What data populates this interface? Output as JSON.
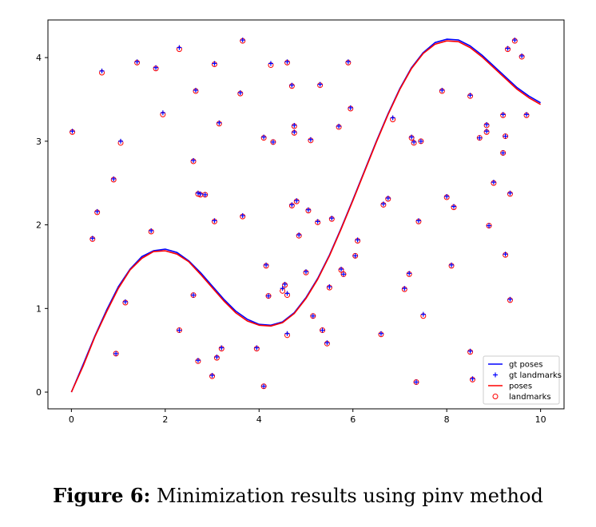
{
  "chart_data": {
    "type": "line",
    "xlim": [
      -0.5,
      10.5
    ],
    "ylim": [
      -0.2,
      4.45
    ],
    "x_ticks": [
      "0",
      "2",
      "4",
      "6",
      "8",
      "10"
    ],
    "x_tick_values": [
      0,
      2,
      4,
      6,
      8,
      10
    ],
    "y_ticks": [
      "0",
      "1",
      "2",
      "3",
      "4"
    ],
    "y_tick_values": [
      0,
      1,
      2,
      3,
      4
    ],
    "grid": false,
    "legend_position": "lower-right",
    "series": [
      {
        "name": "gt poses",
        "kind": "line",
        "color": "#0000ff",
        "x": [
          0,
          0.25,
          0.5,
          0.75,
          1,
          1.25,
          1.5,
          1.75,
          2,
          2.25,
          2.5,
          2.75,
          3,
          3.25,
          3.5,
          3.75,
          4,
          4.25,
          4.5,
          4.75,
          5,
          5.25,
          5.5,
          5.75,
          6,
          6.25,
          6.5,
          6.75,
          7,
          7.25,
          7.5,
          7.75,
          8,
          8.25,
          8.5,
          8.75,
          9,
          9.25,
          9.5,
          9.75,
          10
        ],
        "y": [
          0,
          0.33,
          0.67,
          0.98,
          1.26,
          1.47,
          1.62,
          1.69,
          1.71,
          1.67,
          1.57,
          1.43,
          1.27,
          1.11,
          0.97,
          0.87,
          0.81,
          0.8,
          0.84,
          0.95,
          1.13,
          1.36,
          1.64,
          1.96,
          2.3,
          2.65,
          3.0,
          3.33,
          3.63,
          3.88,
          4.06,
          4.18,
          4.22,
          4.21,
          4.14,
          4.03,
          3.9,
          3.77,
          3.64,
          3.54,
          3.46
        ]
      },
      {
        "name": "gt landmarks",
        "kind": "plus",
        "color": "#0000ff",
        "x": [
          0.02,
          0.45,
          0.55,
          0.65,
          0.9,
          0.95,
          1.05,
          1.15,
          1.4,
          1.7,
          1.8,
          1.95,
          2.3,
          2.3,
          2.6,
          2.6,
          2.65,
          2.7,
          2.7,
          2.75,
          2.85,
          3.0,
          3.05,
          3.05,
          3.1,
          3.15,
          3.2,
          3.6,
          3.65,
          3.65,
          3.95,
          4.1,
          4.1,
          4.15,
          4.2,
          4.25,
          4.3,
          4.5,
          4.55,
          4.6,
          4.6,
          4.6,
          4.7,
          4.7,
          4.75,
          4.75,
          4.8,
          4.85,
          5.0,
          5.05,
          5.1,
          5.15,
          5.25,
          5.3,
          5.35,
          5.45,
          5.5,
          5.55,
          5.7,
          5.75,
          5.8,
          5.9,
          5.95,
          6.05,
          6.1,
          6.6,
          6.65,
          6.75,
          6.85,
          7.1,
          7.2,
          7.25,
          7.3,
          7.35,
          7.4,
          7.45,
          7.5,
          7.9,
          8.0,
          8.1,
          8.15,
          8.5,
          8.5,
          8.55,
          8.7,
          8.85,
          8.85,
          8.9,
          9.0,
          9.2,
          9.2,
          9.25,
          9.25,
          9.3,
          9.35,
          9.35,
          9.45,
          9.6,
          9.7
        ],
        "y": [
          3.12,
          1.84,
          2.16,
          3.84,
          2.55,
          0.46,
          3.0,
          1.08,
          3.95,
          1.93,
          3.88,
          3.34,
          0.74,
          4.12,
          2.77,
          1.16,
          3.61,
          2.38,
          0.38,
          2.37,
          2.36,
          0.2,
          3.93,
          2.05,
          0.42,
          3.22,
          0.53,
          3.58,
          2.11,
          4.21,
          0.53,
          0.07,
          3.05,
          1.52,
          1.15,
          3.93,
          2.99,
          1.24,
          1.29,
          1.18,
          0.7,
          3.95,
          2.24,
          3.67,
          3.11,
          3.19,
          2.29,
          1.88,
          1.44,
          2.18,
          3.02,
          0.91,
          2.04,
          3.68,
          0.74,
          0.59,
          1.26,
          2.08,
          3.18,
          1.47,
          1.41,
          3.95,
          3.4,
          1.63,
          1.82,
          0.7,
          2.25,
          2.32,
          3.28,
          1.24,
          1.42,
          3.05,
          2.99,
          0.12,
          2.05,
          3.0,
          0.93,
          3.61,
          2.34,
          1.52,
          2.22,
          0.49,
          3.55,
          0.16,
          3.04,
          3.12,
          3.2,
          1.99,
          2.51,
          2.86,
          3.32,
          3.06,
          1.65,
          4.11,
          2.38,
          1.11,
          4.21,
          4.02,
          3.32
        ]
      },
      {
        "name": "poses",
        "kind": "line",
        "color": "#ff0000",
        "x": [
          0,
          0.25,
          0.5,
          0.75,
          1,
          1.25,
          1.5,
          1.75,
          2,
          2.25,
          2.5,
          2.75,
          3,
          3.25,
          3.5,
          3.75,
          4,
          4.25,
          4.5,
          4.75,
          5,
          5.25,
          5.5,
          5.75,
          6,
          6.25,
          6.5,
          6.75,
          7,
          7.25,
          7.5,
          7.75,
          8,
          8.25,
          8.5,
          8.75,
          9,
          9.25,
          9.5,
          9.75,
          10
        ],
        "y": [
          0,
          0.31,
          0.66,
          0.96,
          1.24,
          1.46,
          1.6,
          1.68,
          1.69,
          1.65,
          1.56,
          1.41,
          1.25,
          1.09,
          0.95,
          0.85,
          0.8,
          0.79,
          0.83,
          0.94,
          1.12,
          1.35,
          1.63,
          1.95,
          2.29,
          2.64,
          2.99,
          3.32,
          3.62,
          3.87,
          4.05,
          4.16,
          4.2,
          4.19,
          4.12,
          4.01,
          3.88,
          3.75,
          3.62,
          3.52,
          3.44
        ]
      },
      {
        "name": "landmarks",
        "kind": "circle",
        "color": "#ff0000",
        "x": [
          0.02,
          0.45,
          0.55,
          0.65,
          0.9,
          0.95,
          1.05,
          1.15,
          1.4,
          1.7,
          1.8,
          1.95,
          2.3,
          2.3,
          2.6,
          2.6,
          2.65,
          2.7,
          2.7,
          2.75,
          2.85,
          3.0,
          3.05,
          3.05,
          3.1,
          3.15,
          3.2,
          3.6,
          3.65,
          3.65,
          3.95,
          4.1,
          4.1,
          4.15,
          4.2,
          4.25,
          4.3,
          4.5,
          4.55,
          4.6,
          4.6,
          4.6,
          4.7,
          4.7,
          4.75,
          4.75,
          4.8,
          4.85,
          5.0,
          5.05,
          5.1,
          5.15,
          5.25,
          5.3,
          5.35,
          5.45,
          5.5,
          5.55,
          5.7,
          5.75,
          5.8,
          5.9,
          5.95,
          6.05,
          6.1,
          6.6,
          6.65,
          6.75,
          6.85,
          7.1,
          7.2,
          7.25,
          7.3,
          7.35,
          7.4,
          7.45,
          7.5,
          7.9,
          8.0,
          8.1,
          8.15,
          8.5,
          8.5,
          8.55,
          8.7,
          8.85,
          8.85,
          8.9,
          9.0,
          9.2,
          9.2,
          9.25,
          9.25,
          9.3,
          9.35,
          9.35,
          9.45,
          9.6,
          9.7
        ],
        "y": [
          3.11,
          1.83,
          2.15,
          3.82,
          2.54,
          0.46,
          2.98,
          1.07,
          3.94,
          1.92,
          3.87,
          3.32,
          0.74,
          4.1,
          2.76,
          1.16,
          3.6,
          2.37,
          0.37,
          2.36,
          2.36,
          0.19,
          3.92,
          2.04,
          0.41,
          3.21,
          0.52,
          3.57,
          2.1,
          4.2,
          0.52,
          0.07,
          3.04,
          1.51,
          1.15,
          3.91,
          2.99,
          1.21,
          1.28,
          1.16,
          0.68,
          3.94,
          2.23,
          3.66,
          3.1,
          3.18,
          2.28,
          1.87,
          1.43,
          2.17,
          3.01,
          0.91,
          2.03,
          3.67,
          0.74,
          0.58,
          1.25,
          2.07,
          3.17,
          1.46,
          1.41,
          3.94,
          3.39,
          1.63,
          1.81,
          0.69,
          2.24,
          2.31,
          3.26,
          1.23,
          1.41,
          3.04,
          2.98,
          0.12,
          2.04,
          3.0,
          0.91,
          3.6,
          2.33,
          1.51,
          2.21,
          0.48,
          3.54,
          0.15,
          3.04,
          3.11,
          3.19,
          1.99,
          2.5,
          2.86,
          3.31,
          3.06,
          1.64,
          4.1,
          2.37,
          1.1,
          4.2,
          4.01,
          3.31
        ]
      }
    ]
  },
  "caption": {
    "label": "Figure 6:",
    "text": "Minimization results using pinv method"
  }
}
